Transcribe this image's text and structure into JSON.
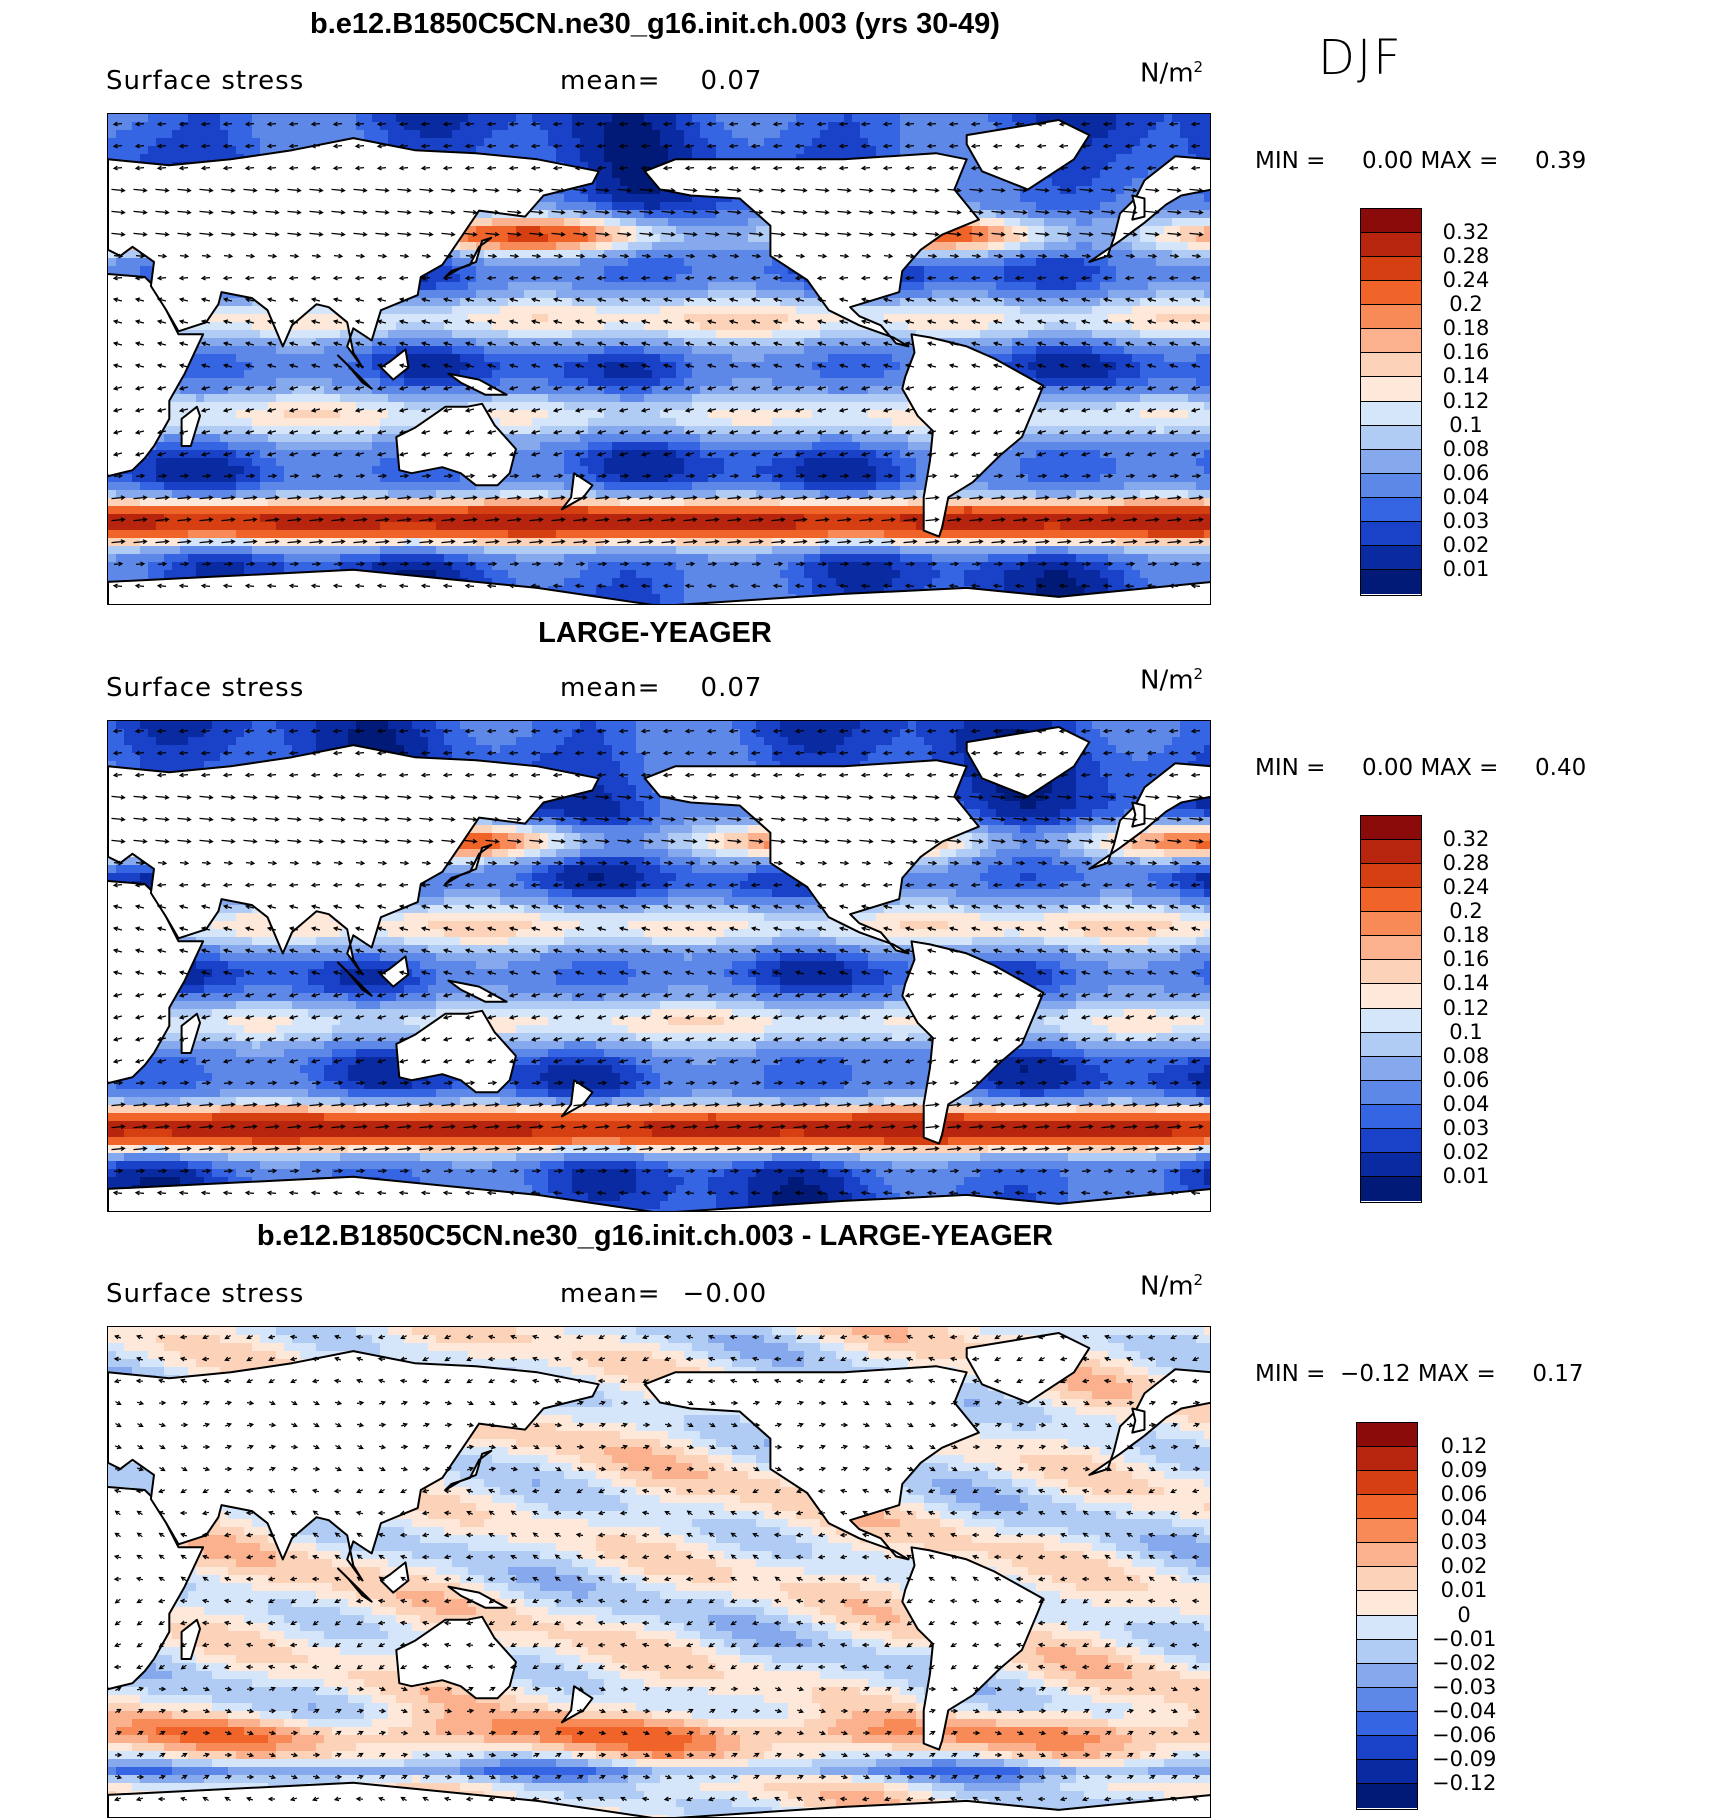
{
  "season": "DJF",
  "panels": [
    {
      "title": "b.e12.B1850C5CN.ne30_g16.init.ch.003 (yrs 30-49)",
      "variable": "Surface stress",
      "mean_label": "mean=",
      "mean_value": "0.07",
      "unit_base": "N/m",
      "unit_exp": "2",
      "min_label": "MIN =",
      "min_value": "0.00",
      "max_label": "MAX =",
      "max_value": "0.39",
      "colorbar": [
        "0.32",
        "0.28",
        "0.24",
        "0.2",
        "0.18",
        "0.16",
        "0.14",
        "0.12",
        "0.1",
        "0.08",
        "0.06",
        "0.04",
        "0.03",
        "0.02",
        "0.01"
      ],
      "colors": [
        "#8b0a0a",
        "#b7250f",
        "#d63f12",
        "#f0642a",
        "#f78a56",
        "#fbb18d",
        "#fcd2b8",
        "#fde8da",
        "#d6e6fa",
        "#b0cbf4",
        "#86a9ee",
        "#5e88e8",
        "#3565e2",
        "#1a42c8",
        "#0a2aa2",
        "#021a77"
      ],
      "map_style": "absolute"
    },
    {
      "title": "LARGE-YEAGER",
      "variable": "Surface stress",
      "mean_label": "mean=",
      "mean_value": "0.07",
      "unit_base": "N/m",
      "unit_exp": "2",
      "min_label": "MIN =",
      "min_value": "0.00",
      "max_label": "MAX =",
      "max_value": "0.40",
      "colorbar": [
        "0.32",
        "0.28",
        "0.24",
        "0.2",
        "0.18",
        "0.16",
        "0.14",
        "0.12",
        "0.1",
        "0.08",
        "0.06",
        "0.04",
        "0.03",
        "0.02",
        "0.01"
      ],
      "colors": [
        "#8b0a0a",
        "#b7250f",
        "#d63f12",
        "#f0642a",
        "#f78a56",
        "#fbb18d",
        "#fcd2b8",
        "#fde8da",
        "#d6e6fa",
        "#b0cbf4",
        "#86a9ee",
        "#5e88e8",
        "#3565e2",
        "#1a42c8",
        "#0a2aa2",
        "#021a77"
      ],
      "map_style": "absolute"
    },
    {
      "title": "b.e12.B1850C5CN.ne30_g16.init.ch.003 - LARGE-YEAGER",
      "variable": "Surface stress",
      "mean_label": "mean=",
      "mean_value": "−0.00",
      "unit_base": "N/m",
      "unit_exp": "2",
      "min_label": "MIN =",
      "min_value": "−0.12",
      "max_label": "MAX =",
      "max_value": "0.17",
      "colorbar": [
        "0.12",
        "0.09",
        "0.06",
        "0.04",
        "0.03",
        "0.02",
        "0.01",
        "0",
        "−0.01",
        "−0.02",
        "−0.03",
        "−0.04",
        "−0.06",
        "−0.09",
        "−0.12"
      ],
      "colors": [
        "#8b0a0a",
        "#b7250f",
        "#d63f12",
        "#f0642a",
        "#f78a56",
        "#fbb18d",
        "#fcd2b8",
        "#fde8da",
        "#d6e6fa",
        "#b0cbf4",
        "#86a9ee",
        "#5e88e8",
        "#3565e2",
        "#1a42c8",
        "#0a2aa2",
        "#021a77"
      ],
      "map_style": "difference"
    }
  ]
}
